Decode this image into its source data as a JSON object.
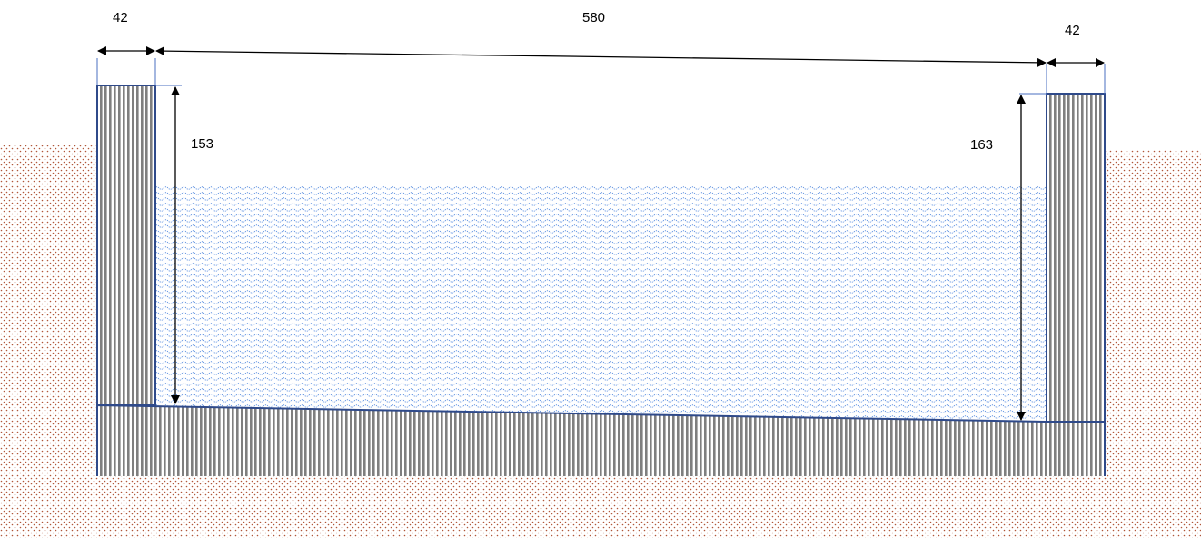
{
  "diagram": {
    "dimensions": {
      "left_wall_thickness": "42",
      "channel_width": "580",
      "right_wall_thickness": "42",
      "left_depth": "153",
      "right_depth": "163"
    },
    "colors": {
      "soil_dots": "#b0573a",
      "water_pattern": "#5b8fe0",
      "concrete_stripes": "#7f7f7f",
      "outline": "#2f4a8a",
      "dimension_lines": "#000000",
      "extension_lines": "#4a6fc0"
    }
  }
}
